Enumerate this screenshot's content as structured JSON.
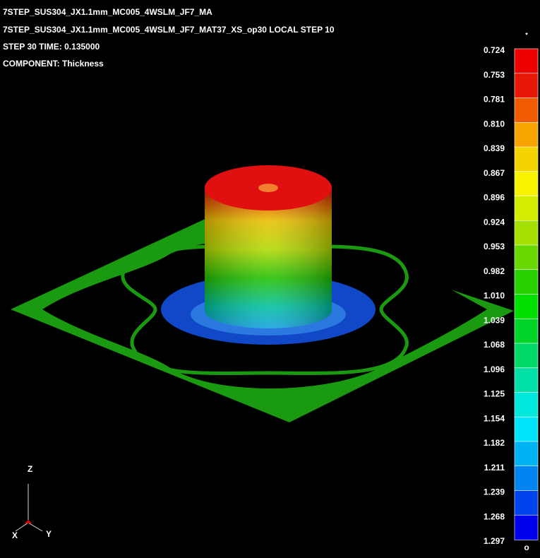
{
  "header": {
    "lines": [
      "7STEP_SUS304_JX1.1mm_MC005_4WSLM_JF7_MA",
      "7STEP_SUS304_JX1.1mm_MC005_4WSLM_JF7_MAT37_XS_op30  LOCAL STEP 10",
      "STEP 30    TIME:     0.135000",
      "COMPONENT: Thickness"
    ]
  },
  "legend": {
    "top_marker": "*",
    "bottom_marker": "o",
    "labels": [
      "0.724",
      "0.753",
      "0.781",
      "0.810",
      "0.839",
      "0.867",
      "0.896",
      "0.924",
      "0.953",
      "0.982",
      "1.010",
      "1.039",
      "1.068",
      "1.096",
      "1.125",
      "1.154",
      "1.182",
      "1.211",
      "1.239",
      "1.268",
      "1.297"
    ],
    "colors": [
      "#ee0000",
      "#e81808",
      "#f05a00",
      "#f8a400",
      "#f4d400",
      "#f8f400",
      "#d4ec00",
      "#a4e000",
      "#68d800",
      "#28d000",
      "#00e000",
      "#00d428",
      "#00d868",
      "#00e0a8",
      "#00e8dc",
      "#00e4fc",
      "#00b4f4",
      "#0084f0",
      "#0044f0",
      "#0000f0"
    ]
  },
  "triad": {
    "z": "Z",
    "x": "X",
    "y": "Y"
  }
}
